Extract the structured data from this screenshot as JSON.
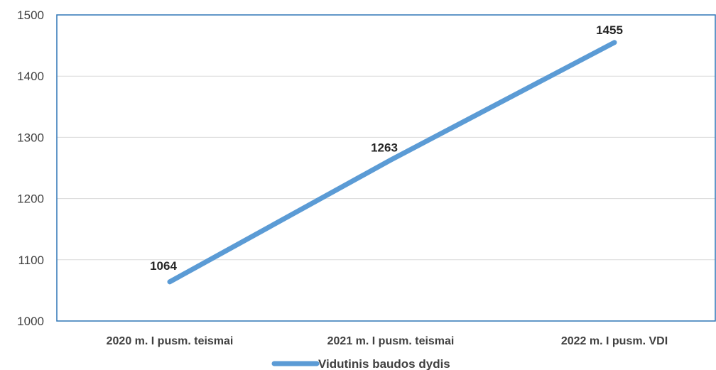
{
  "chart_data": {
    "type": "line",
    "categories": [
      "2020 m. I pusm. teismai",
      "2021 m. I pusm. teismai",
      "2022 m. I pusm. VDI"
    ],
    "series": [
      {
        "name": "Vidutinis baudos dydis",
        "values": [
          1064,
          1263,
          1455
        ],
        "color": "#5b9bd5"
      }
    ],
    "data_labels": [
      "1064",
      "1263",
      "1455"
    ],
    "yticks": [
      1000,
      1100,
      1200,
      1300,
      1400,
      1500
    ],
    "ylim": [
      1000,
      1500
    ],
    "grid": true,
    "legend_position": "bottom",
    "axis_color": "#2e75b6",
    "grid_color": "#d9d9d9"
  }
}
